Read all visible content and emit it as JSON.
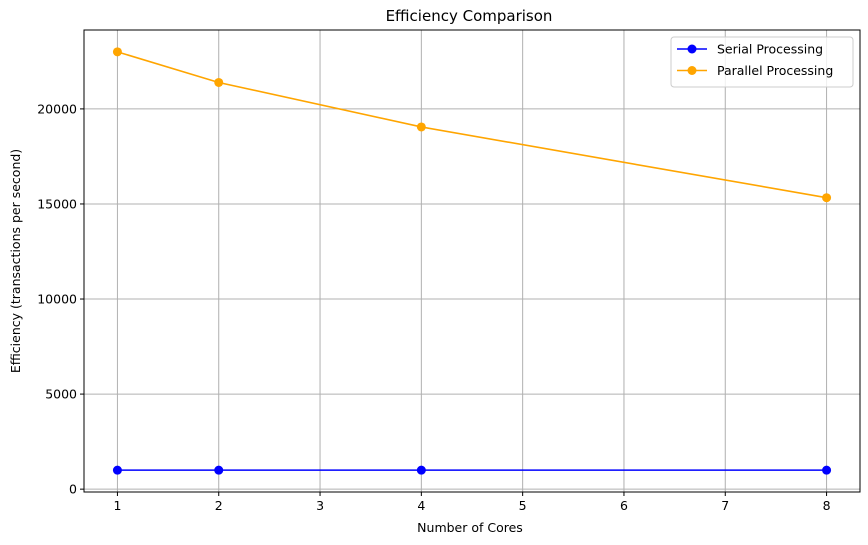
{
  "chart_data": {
    "type": "line",
    "title": "Efficiency Comparison",
    "xlabel": "Number of Cores",
    "ylabel": "Efficiency (transactions per second)",
    "xlim": [
      0.67,
      8.33
    ],
    "ylim": [
      -150,
      24150
    ],
    "xticks": [
      1,
      2,
      3,
      4,
      5,
      6,
      7,
      8
    ],
    "yticks": [
      0,
      5000,
      10000,
      15000,
      20000
    ],
    "grid": true,
    "legend_position": "top-right",
    "series": [
      {
        "name": "Serial Processing",
        "color": "#0000ff",
        "marker": "circle",
        "x": [
          1,
          2,
          4,
          8
        ],
        "y": [
          1000,
          1000,
          1000,
          1000
        ]
      },
      {
        "name": "Parallel Processing",
        "color": "#ffa500",
        "marker": "circle",
        "x": [
          1,
          2,
          4,
          8
        ],
        "y": [
          23000,
          21390,
          19050,
          15330
        ]
      }
    ]
  }
}
